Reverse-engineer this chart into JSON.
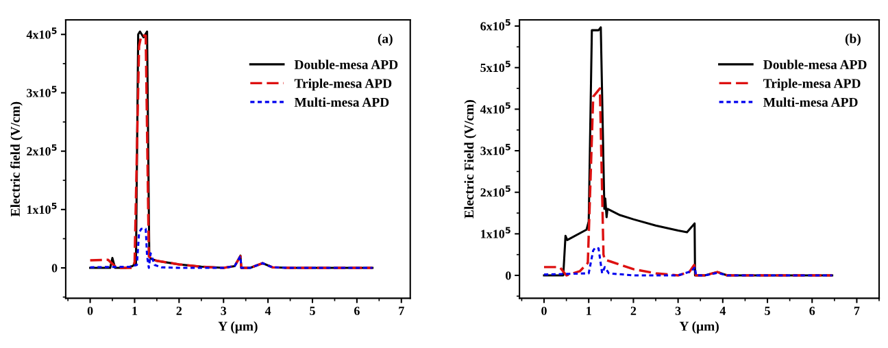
{
  "chart_data": [
    {
      "type": "line",
      "xlabel": "Y (μm)",
      "ylabel": "Electric field (V/cm)",
      "annotations": [
        "(a)"
      ],
      "legend": "top right",
      "grid": false,
      "xlim": [
        -0.55,
        7.2
      ],
      "xticks": [
        0,
        1,
        2,
        3,
        4,
        5,
        6,
        7
      ],
      "ylim": [
        -52000,
        425000
      ],
      "yticks": [
        {
          "value": 0,
          "label": "0"
        },
        {
          "value": 100000,
          "label": "1x10$^{5}$"
        },
        {
          "value": 200000,
          "label": "2x10$^{5}$"
        },
        {
          "value": 300000,
          "label": "3x10$^{5}$"
        },
        {
          "value": 400000,
          "label": "4x10$^{5}$"
        }
      ],
      "series": [
        {
          "name": "Double-mesa APD",
          "color": "#000000",
          "line_style": "solid",
          "x": [
            0,
            0.45,
            0.5,
            0.56,
            0.8,
            0.95,
            1.03,
            1.08,
            1.12,
            1.2,
            1.28,
            1.33,
            1.36,
            1.5,
            2,
            2.5,
            3,
            3.25,
            3.38,
            3.4,
            3.6,
            3.88,
            4.1,
            4.5,
            6.35
          ],
          "values": [
            0,
            0,
            17000,
            0,
            0,
            3000,
            8000,
            400000,
            405000,
            395000,
            405000,
            20000,
            16000,
            12000,
            6000,
            2000,
            0,
            3000,
            21000,
            0,
            0,
            8000,
            1000,
            0,
            0
          ]
        },
        {
          "name": "Triple-mesa APD",
          "color": "#dd1111",
          "line_style": "dashed",
          "x": [
            0,
            0.4,
            0.6,
            0.95,
            1.0,
            1.1,
            1.15,
            1.25,
            1.32,
            1.36,
            1.5,
            2,
            2.5,
            3,
            3.25,
            3.38,
            3.4,
            3.6,
            3.88,
            4.1,
            4.5,
            6.35
          ],
          "values": [
            13000,
            14000,
            0,
            0,
            10000,
            380000,
            398000,
            398000,
            20000,
            17000,
            12000,
            6000,
            2000,
            0,
            3000,
            20000,
            0,
            0,
            8000,
            1000,
            0,
            0
          ]
        },
        {
          "name": "Multi-mesa APD",
          "color": "#0000ee",
          "line_style": "dotted",
          "x": [
            0,
            0.9,
            1.05,
            1.1,
            1.15,
            1.25,
            1.28,
            1.32,
            1.36,
            1.45,
            1.6,
            2,
            3,
            3.25,
            3.38,
            3.4,
            3.6,
            3.88,
            4.1,
            4.5,
            6.35
          ],
          "values": [
            1000,
            2000,
            5000,
            60000,
            67000,
            67000,
            20000,
            0,
            25000,
            5000,
            1000,
            0,
            0,
            3000,
            20000,
            0,
            0,
            8000,
            1000,
            0,
            0
          ]
        }
      ]
    },
    {
      "type": "line",
      "xlabel": "Y (μm)",
      "ylabel": "Electric Field (V/cm)",
      "annotations": [
        "(b)"
      ],
      "legend": "top right",
      "grid": false,
      "xlim": [
        -0.55,
        7.5
      ],
      "xticks": [
        0,
        1,
        2,
        3,
        4,
        5,
        6,
        7
      ],
      "ylim": [
        -55000,
        615000
      ],
      "yticks": [
        {
          "value": 0,
          "label": "0"
        },
        {
          "value": 100000,
          "label": "1x10$^{5}$"
        },
        {
          "value": 200000,
          "label": "2x10$^{5}$"
        },
        {
          "value": 300000,
          "label": "3x10$^{5}$"
        },
        {
          "value": 400000,
          "label": "4x10$^{5}$"
        },
        {
          "value": 500000,
          "label": "5x10$^{5}$"
        },
        {
          "value": 600000,
          "label": "6x10$^{5}$"
        }
      ],
      "series": [
        {
          "name": "Double-mesa APD",
          "color": "#000000",
          "line_style": "solid",
          "x": [
            0,
            0.43,
            0.48,
            0.52,
            0.95,
            1.0,
            1.07,
            1.13,
            1.22,
            1.27,
            1.35,
            1.37,
            1.4,
            1.42,
            1.7,
            2,
            2.5,
            3,
            3.2,
            3.37,
            3.38,
            3.6,
            3.88,
            4.1,
            6.45
          ],
          "values": [
            0,
            0,
            95000,
            85000,
            110000,
            130000,
            590000,
            590000,
            590000,
            597000,
            160000,
            185000,
            140000,
            160000,
            145000,
            135000,
            120000,
            108000,
            104000,
            125000,
            0,
            0,
            8000,
            0,
            0
          ]
        },
        {
          "name": "Triple-mesa APD",
          "color": "#dd1111",
          "line_style": "dashed",
          "x": [
            0,
            0.35,
            0.5,
            0.8,
            0.98,
            1.1,
            1.25,
            1.33,
            1.36,
            1.5,
            2,
            2.5,
            3,
            3.25,
            3.36,
            3.4,
            3.6,
            3.88,
            4.1,
            6.45
          ],
          "values": [
            20000,
            20000,
            0,
            10000,
            30000,
            430000,
            450000,
            50000,
            38000,
            33000,
            15000,
            5000,
            0,
            8000,
            25000,
            0,
            0,
            8000,
            0,
            0
          ]
        },
        {
          "name": "Multi-mesa APD",
          "color": "#0000ee",
          "line_style": "dotted",
          "x": [
            0,
            1.0,
            1.1,
            1.15,
            1.22,
            1.3,
            1.36,
            1.45,
            2,
            3,
            3.3,
            3.38,
            3.4,
            3.6,
            3.88,
            4.1,
            6.45
          ],
          "values": [
            2000,
            5000,
            60000,
            67000,
            65000,
            5000,
            20000,
            5000,
            0,
            0,
            10000,
            20000,
            0,
            0,
            6000,
            0,
            0
          ]
        }
      ]
    }
  ]
}
